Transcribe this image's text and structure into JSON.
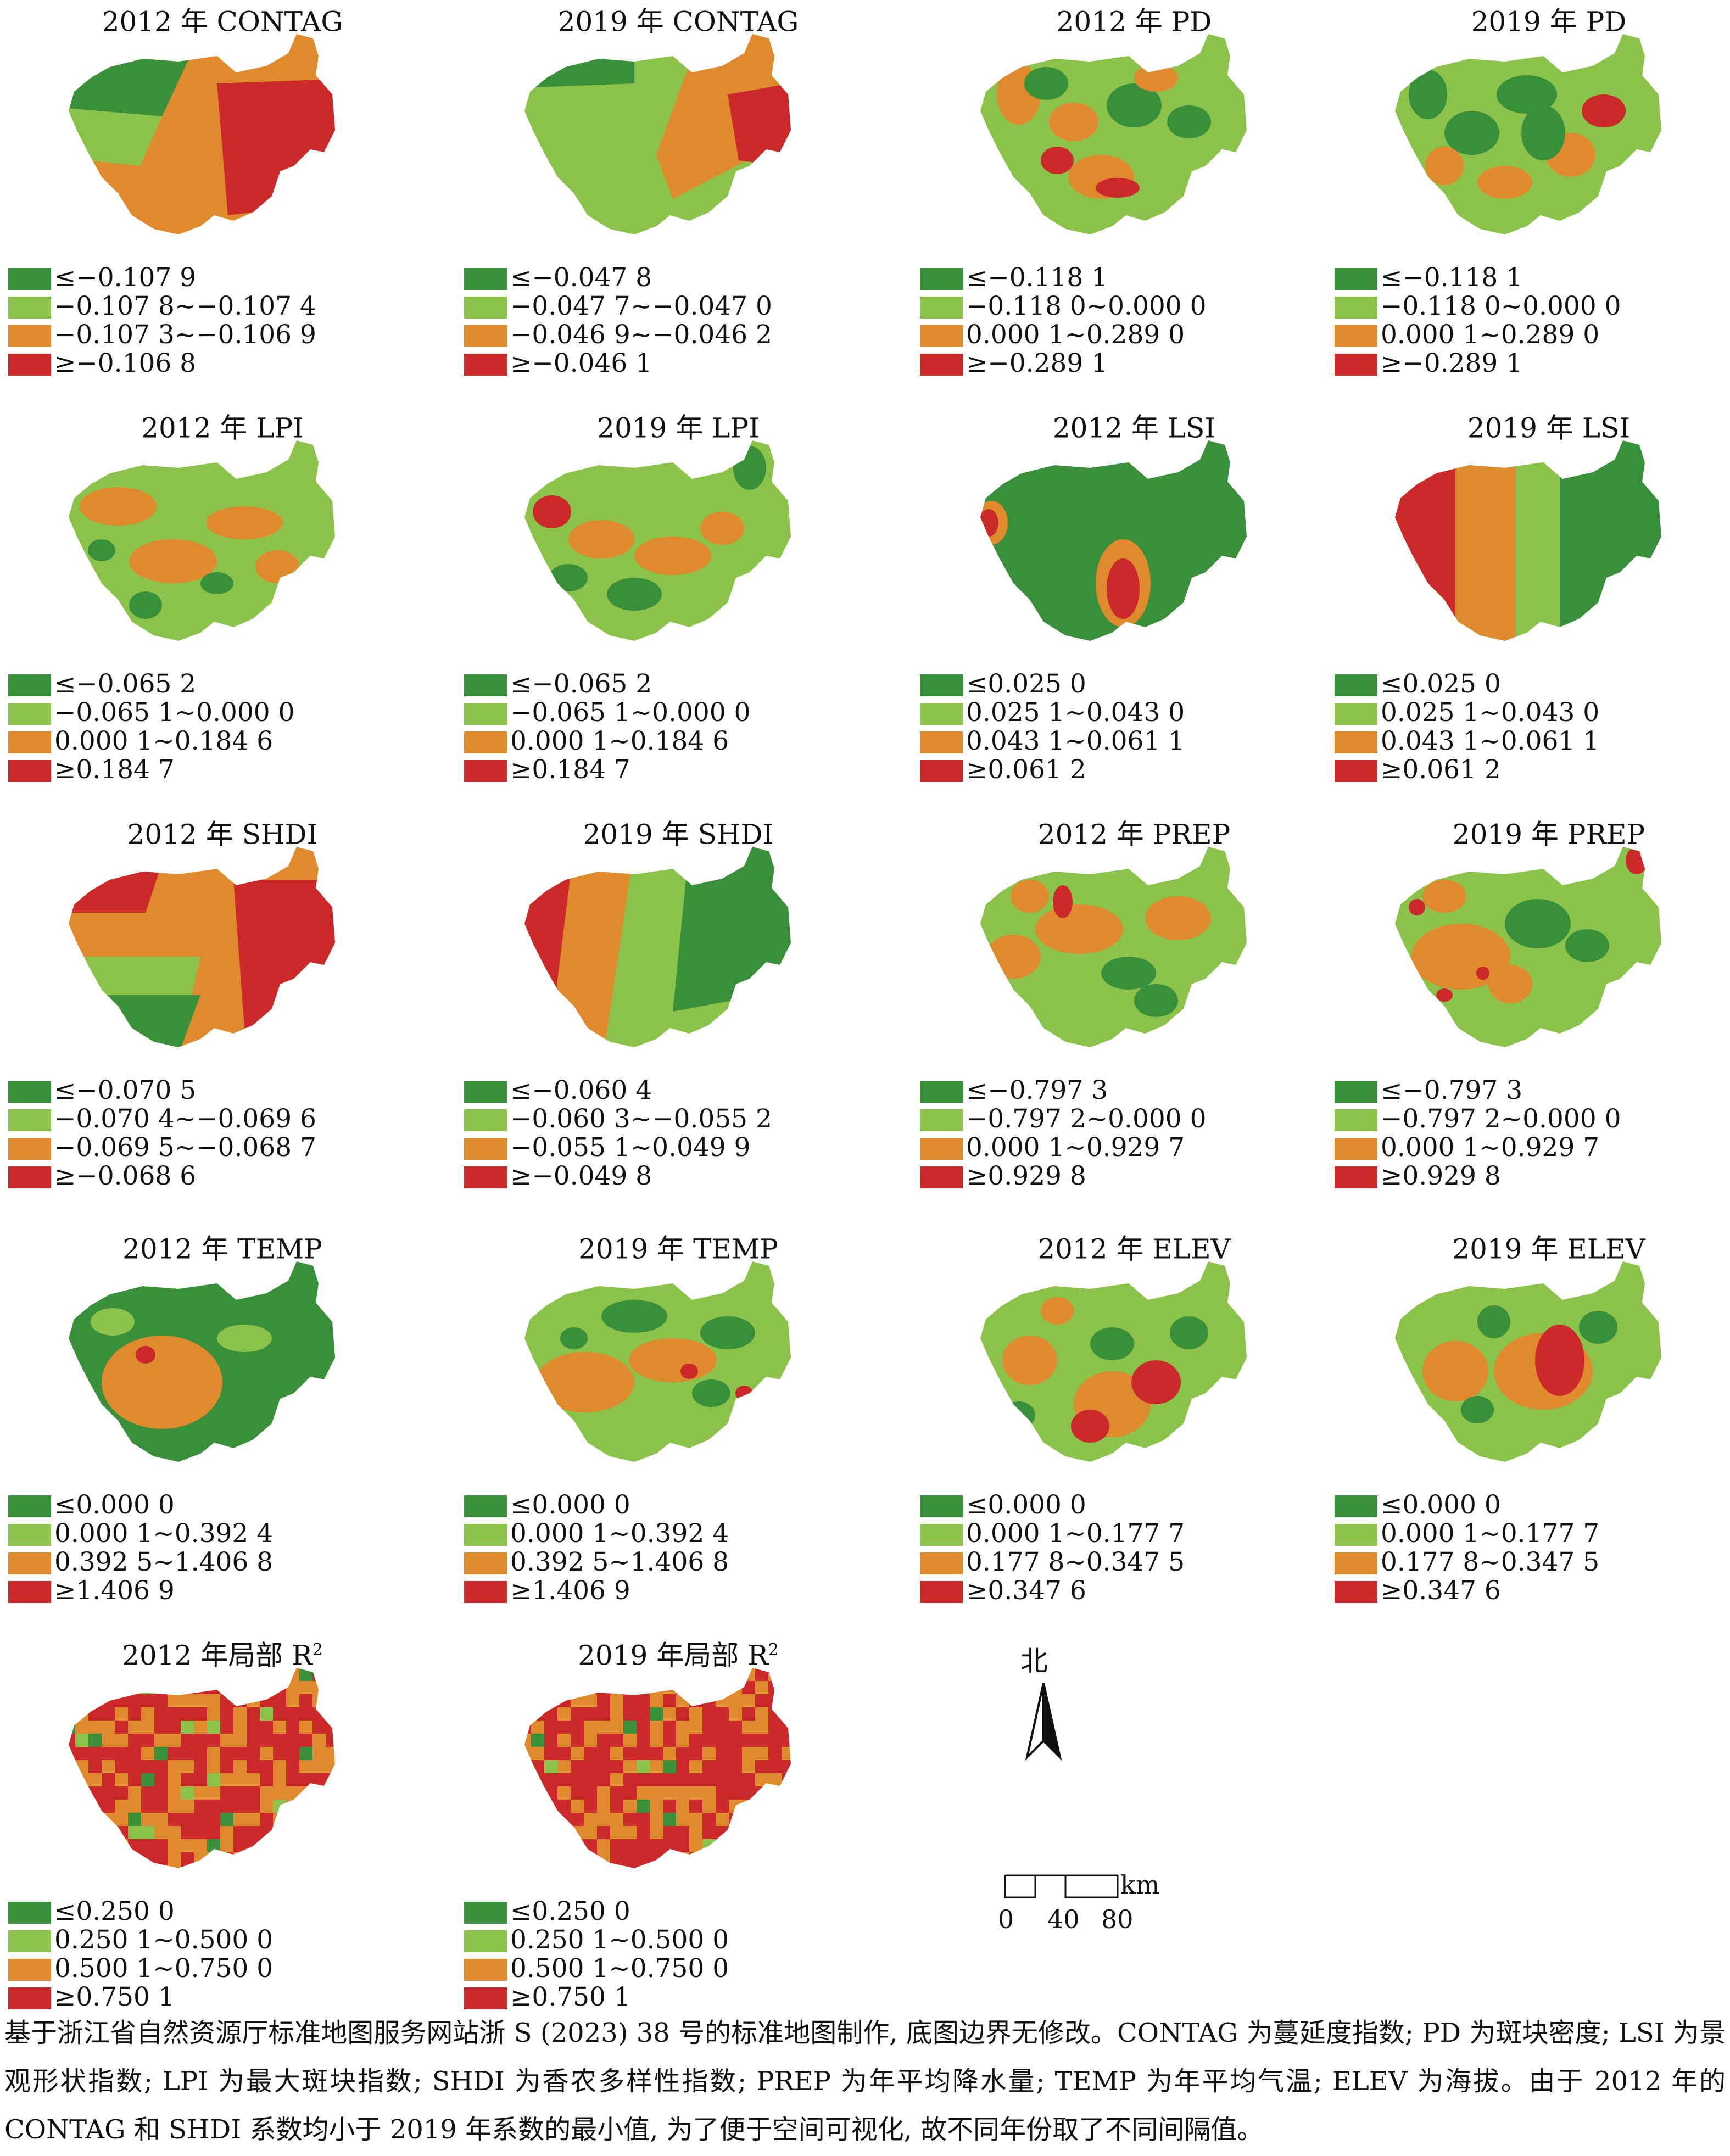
{
  "colors": {
    "c1": "#3a8f3a",
    "c2": "#8bc34a",
    "c3": "#e08a2e",
    "c4": "#cc2a2a"
  },
  "panels": [
    {
      "title": "2012 年 CONTAG",
      "sup": "",
      "legend": [
        "≤−0.107 9",
        "−0.107 8~−0.107 4",
        "−0.107 3~−0.106 9",
        "≥−0.106 8"
      ]
    },
    {
      "title": "2019 年 CONTAG",
      "sup": "",
      "legend": [
        "≤−0.047 8",
        "−0.047 7~−0.047 0",
        "−0.046 9~−0.046 2",
        "≥−0.046 1"
      ]
    },
    {
      "title": "2012 年 PD",
      "sup": "",
      "legend": [
        "≤−0.118 1",
        "−0.118 0~0.000 0",
        "0.000 1~0.289 0",
        "≥−0.289 1"
      ]
    },
    {
      "title": "2019 年 PD",
      "sup": "",
      "legend": [
        "≤−0.118 1",
        "−0.118 0~0.000 0",
        "0.000 1~0.289 0",
        "≥−0.289 1"
      ]
    },
    {
      "title": "2012 年 LPI",
      "sup": "",
      "legend": [
        "≤−0.065 2",
        "−0.065 1~0.000 0",
        "0.000 1~0.184 6",
        "≥0.184 7"
      ]
    },
    {
      "title": "2019 年 LPI",
      "sup": "",
      "legend": [
        "≤−0.065 2",
        "−0.065 1~0.000 0",
        "0.000 1~0.184 6",
        "≥0.184 7"
      ]
    },
    {
      "title": "2012 年 LSI",
      "sup": "",
      "legend": [
        "≤0.025 0",
        "0.025 1~0.043 0",
        "0.043 1~0.061 1",
        "≥0.061 2"
      ]
    },
    {
      "title": "2019 年 LSI",
      "sup": "",
      "legend": [
        "≤0.025 0",
        "0.025 1~0.043 0",
        "0.043 1~0.061 1",
        "≥0.061 2"
      ]
    },
    {
      "title": "2012 年 SHDI",
      "sup": "",
      "legend": [
        "≤−0.070 5",
        "−0.070 4~−0.069 6",
        "−0.069 5~−0.068 7",
        "≥−0.068 6"
      ]
    },
    {
      "title": "2019 年 SHDI",
      "sup": "",
      "legend": [
        "≤−0.060 4",
        "−0.060 3~−0.055 2",
        "−0.055 1~0.049 9",
        "≥−0.049 8"
      ]
    },
    {
      "title": "2012 年 PREP",
      "sup": "",
      "legend": [
        "≤−0.797 3",
        "−0.797 2~0.000 0",
        "0.000 1~0.929 7",
        "≥0.929 8"
      ]
    },
    {
      "title": "2019 年 PREP",
      "sup": "",
      "legend": [
        "≤−0.797 3",
        "−0.797 2~0.000 0",
        "0.000 1~0.929 7",
        "≥0.929 8"
      ]
    },
    {
      "title": "2012 年 TEMP",
      "sup": "",
      "legend": [
        "≤0.000 0",
        "0.000 1~0.392 4",
        "0.392 5~1.406 8",
        "≥1.406 9"
      ]
    },
    {
      "title": "2019 年 TEMP",
      "sup": "",
      "legend": [
        "≤0.000 0",
        "0.000 1~0.392 4",
        "0.392 5~1.406 8",
        "≥1.406 9"
      ]
    },
    {
      "title": "2012 年 ELEV",
      "sup": "",
      "legend": [
        "≤0.000 0",
        "0.000 1~0.177 7",
        "0.177 8~0.347 5",
        "≥0.347 6"
      ]
    },
    {
      "title": "2019 年 ELEV",
      "sup": "",
      "legend": [
        "≤0.000 0",
        "0.000 1~0.177 7",
        "0.177 8~0.347 5",
        "≥0.347 6"
      ]
    },
    {
      "title": "2012 年局部 R",
      "sup": "2",
      "legend": [
        "≤0.250 0",
        "0.250 1~0.500 0",
        "0.500 1~0.750 0",
        "≥0.750 1"
      ]
    },
    {
      "title": "2019 年局部 R",
      "sup": "2",
      "legend": [
        "≤0.250 0",
        "0.250 1~0.500 0",
        "0.500 1~0.750 0",
        "≥0.750 1"
      ]
    }
  ],
  "north_label": "北",
  "scale": {
    "unit": "km",
    "ticks": [
      "0",
      "40",
      "80"
    ]
  },
  "caption": "基于浙江省自然资源厅标准地图服务网站浙 S (2023) 38 号的标准地图制作, 底图边界无修改。CONTAG 为蔓延度指数; PD 为斑块密度; LSI 为景观形状指数; LPI 为最大斑块指数; SHDI 为香农多样性指数; PREP 为年平均降水量; TEMP 为年平均气温; ELEV 为海拔。由于 2012 年的 CONTAG 和 SHDI 系数均小于 2019 年系数的最小值, 为了便于空间可视化, 故不同年份取了不同间隔值。"
}
